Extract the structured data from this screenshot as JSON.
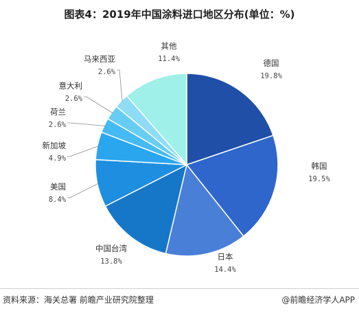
{
  "title": "图表4：2019年中国涂料进口地区分布(单位：%)",
  "footer": {
    "source": "资料来源：海关总署 前瞻产业研究院整理",
    "brand": "@前瞻经济学人APP"
  },
  "chart_data": {
    "type": "pie",
    "title": "图表4：2019年中国涂料进口地区分布(单位：%)",
    "unit": "%",
    "slices": [
      {
        "label": "德国",
        "value": 19.8,
        "display": "19.8%",
        "color": "#1f4fa6"
      },
      {
        "label": "韩国",
        "value": 19.5,
        "display": "19.5%",
        "color": "#2f66cc"
      },
      {
        "label": "日本",
        "value": 14.4,
        "display": "14.4%",
        "color": "#4a7fd8"
      },
      {
        "label": "中国台湾",
        "value": 13.8,
        "display": "13.8%",
        "color": "#1677c9"
      },
      {
        "label": "美国",
        "value": 8.4,
        "display": "8.4%",
        "color": "#1e8fe0"
      },
      {
        "label": "新加坡",
        "value": 4.9,
        "display": "4.9%",
        "color": "#2aa6ef"
      },
      {
        "label": "荷兰",
        "value": 2.6,
        "display": "2.6%",
        "color": "#45baf3"
      },
      {
        "label": "意大利",
        "value": 2.6,
        "display": "2.6%",
        "color": "#67cdf5"
      },
      {
        "label": "马来西亚",
        "value": 2.6,
        "display": "2.6%",
        "color": "#8fdcf6"
      },
      {
        "label": "其他",
        "value": 11.4,
        "display": "11.4%",
        "color": "#9ef0e8"
      }
    ]
  }
}
